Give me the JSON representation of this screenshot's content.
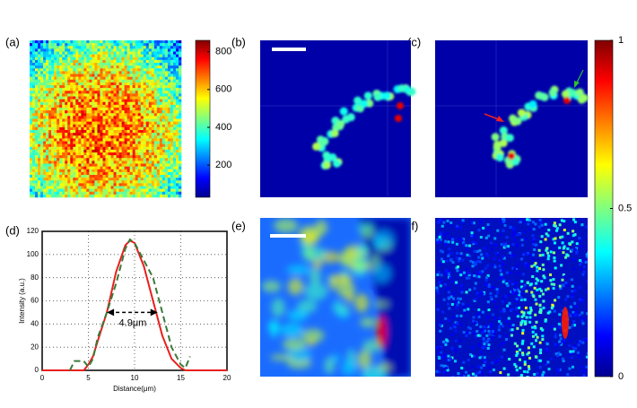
{
  "panel_labels": [
    "(a)",
    "(b)",
    "(c)",
    "(d)",
    "(e)",
    "(f)"
  ],
  "chart_data": [
    {
      "type": "colorbar",
      "ylim": [
        30,
        860
      ],
      "yticks": [
        200,
        400,
        600,
        800
      ]
    },
    {
      "type": "line",
      "ylabel": "Intensity (a.u.)",
      "xlabel": "Distance(μm)",
      "annotation": "4.9μm",
      "x": [
        0,
        3,
        3.5,
        4.5,
        5,
        5.5,
        6,
        7,
        8,
        9,
        9.5,
        10,
        11,
        12,
        13,
        14,
        15,
        15.5,
        16,
        20
      ],
      "xlim": [
        0,
        20
      ],
      "xticks": [
        0,
        5,
        10,
        15,
        20
      ],
      "ylim": [
        0,
        120
      ],
      "yticks": [
        0,
        20,
        40,
        60,
        80,
        100,
        120
      ],
      "grid": true,
      "series": [
        {
          "color": "#e8201c",
          "values": [
            0,
            0,
            0,
            0,
            5,
            12,
            25,
            50,
            85,
            108,
            112,
            110,
            90,
            60,
            30,
            10,
            2,
            0,
            0,
            0
          ]
        },
        {
          "color": "#3a7a3a",
          "dashed": true,
          "values": [
            null,
            0,
            8,
            8,
            3,
            10,
            28,
            50,
            75,
            105,
            113,
            110,
            95,
            80,
            50,
            20,
            5,
            2,
            12,
            null
          ]
        }
      ]
    },
    {
      "type": "colorbar",
      "ylim": [
        0,
        1
      ],
      "yticks": [
        0,
        0.5,
        1
      ]
    }
  ]
}
